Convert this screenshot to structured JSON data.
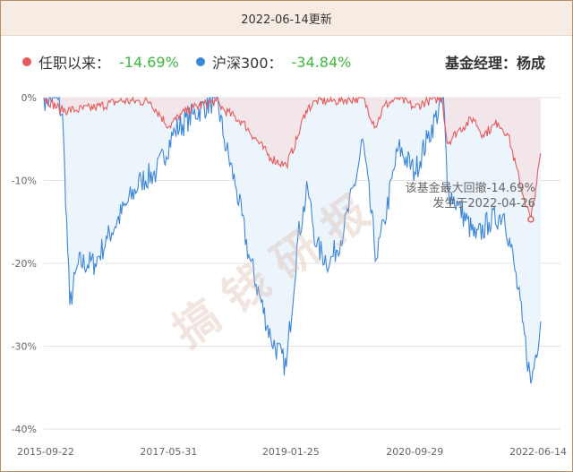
{
  "header": {
    "update_text": "2022-06-14更新"
  },
  "legend": {
    "fund_label": "任职以来：",
    "fund_value": "-14.69%",
    "index_label": "沪深300：",
    "index_value": "-34.84%",
    "manager": "基金经理：杨成"
  },
  "watermark": "搞 钱 研 报",
  "annotation": {
    "line1": "该基金最大回撤-14.69%",
    "line2": "发生于2022-04-26"
  },
  "colors": {
    "fund": "#e85b5b",
    "index": "#3d86d8",
    "fund_fill": "#f3e3e8",
    "index_fill": "#e9f2fc",
    "value": "#3dba3d"
  },
  "chart_data": {
    "type": "area",
    "title": "",
    "xlabel": "",
    "ylabel": "",
    "ylim": [
      -40,
      0
    ],
    "y_ticks": [
      "0%",
      "-10%",
      "-20%",
      "-30%",
      "-40%"
    ],
    "x_ticks": [
      "2015-09-22",
      "2017-05-31",
      "2019-01-25",
      "2020-09-29",
      "2022-06-14"
    ],
    "x_range": [
      "2015-09-22",
      "2022-06-14"
    ],
    "grid": true,
    "legend_position": "top-left",
    "series": [
      {
        "name": "任职以来",
        "color": "#e85b5b",
        "points": [
          [
            "2015-09-22",
            0
          ],
          [
            "2015-12-15",
            -1.5
          ],
          [
            "2016-03-01",
            -1.5
          ],
          [
            "2016-06-01",
            -1.2
          ],
          [
            "2016-10-01",
            -0.4
          ],
          [
            "2017-03-01",
            -0.5
          ],
          [
            "2017-05-31",
            -3.5
          ],
          [
            "2017-08-01",
            -2.0
          ],
          [
            "2017-10-01",
            -1.2
          ],
          [
            "2018-01-20",
            -0.4
          ],
          [
            "2018-03-01",
            -1.5
          ],
          [
            "2018-06-01",
            -3.0
          ],
          [
            "2018-10-18",
            -7.3
          ],
          [
            "2019-01-03",
            -8.2
          ],
          [
            "2019-02-25",
            -5.0
          ],
          [
            "2019-04-10",
            -1.5
          ],
          [
            "2019-06-01",
            -0.4
          ],
          [
            "2019-09-01",
            -0.4
          ],
          [
            "2020-01-15",
            0
          ],
          [
            "2020-03-19",
            -3.5
          ],
          [
            "2020-05-01",
            -1.0
          ],
          [
            "2020-07-10",
            0
          ],
          [
            "2020-09-29",
            -1.2
          ],
          [
            "2020-12-01",
            -0.4
          ],
          [
            "2021-02-10",
            0
          ],
          [
            "2021-03-09",
            -5.5
          ],
          [
            "2021-05-01",
            -4.0
          ],
          [
            "2021-07-15",
            -2.5
          ],
          [
            "2021-09-01",
            -4.5
          ],
          [
            "2021-11-15",
            -3.0
          ],
          [
            "2022-01-04",
            -4.5
          ],
          [
            "2022-03-15",
            -11.5
          ],
          [
            "2022-04-26",
            -14.69
          ],
          [
            "2022-05-20",
            -11.0
          ],
          [
            "2022-06-14",
            -6.7
          ]
        ]
      },
      {
        "name": "沪深300",
        "color": "#3d86d8",
        "points": [
          [
            "2015-09-22",
            0
          ],
          [
            "2015-11-20",
            0
          ],
          [
            "2015-12-23",
            -2.0
          ],
          [
            "2016-01-28",
            -25.0
          ],
          [
            "2016-03-10",
            -20.0
          ],
          [
            "2016-06-01",
            -20.0
          ],
          [
            "2016-08-01",
            -17.0
          ],
          [
            "2016-11-01",
            -13.0
          ],
          [
            "2017-01-15",
            -10.0
          ],
          [
            "2017-04-01",
            -9.0
          ],
          [
            "2017-07-01",
            -4.0
          ],
          [
            "2017-10-01",
            -2.0
          ],
          [
            "2018-01-24",
            0
          ],
          [
            "2018-03-01",
            -5.0
          ],
          [
            "2018-05-01",
            -11.0
          ],
          [
            "2018-07-01",
            -19.0
          ],
          [
            "2018-10-18",
            -29.0
          ],
          [
            "2019-01-03",
            -32.5
          ],
          [
            "2019-03-01",
            -17.0
          ],
          [
            "2019-04-19",
            -11.0
          ],
          [
            "2019-06-01",
            -18.0
          ],
          [
            "2019-08-06",
            -20.0
          ],
          [
            "2019-10-15",
            -16.0
          ],
          [
            "2019-12-20",
            -9.0
          ],
          [
            "2020-01-15",
            -5.0
          ],
          [
            "2020-03-23",
            -19.5
          ],
          [
            "2020-05-01",
            -15.0
          ],
          [
            "2020-07-10",
            -6.0
          ],
          [
            "2020-09-29",
            -9.0
          ],
          [
            "2020-12-01",
            -5.0
          ],
          [
            "2021-02-18",
            0
          ],
          [
            "2021-03-09",
            -11.0
          ],
          [
            "2021-05-01",
            -13.0
          ],
          [
            "2021-07-28",
            -17.0
          ],
          [
            "2021-10-01",
            -15.0
          ],
          [
            "2021-12-15",
            -14.0
          ],
          [
            "2022-02-01",
            -20.0
          ],
          [
            "2022-03-15",
            -27.0
          ],
          [
            "2022-04-26",
            -34.5
          ],
          [
            "2022-05-20",
            -31.0
          ],
          [
            "2022-06-14",
            -27.0
          ]
        ]
      }
    ],
    "annotation": {
      "series": "任职以来",
      "date": "2022-04-26",
      "value": -14.69
    }
  }
}
